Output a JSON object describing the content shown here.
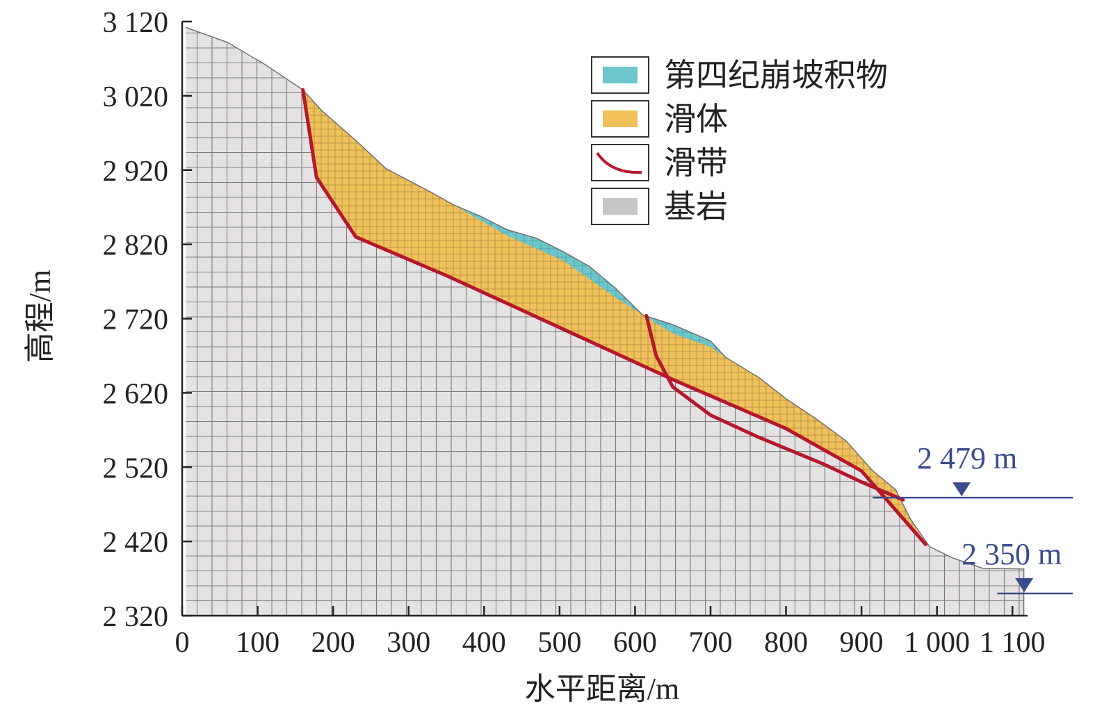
{
  "chart_data": {
    "type": "cross-section",
    "xlabel": "水平距离/m",
    "ylabel": "高程/m",
    "xlim": [
      0,
      1120
    ],
    "ylim": [
      2320,
      3120
    ],
    "x_tick_labels": [
      {
        "value": 0,
        "label": "0"
      },
      {
        "value": 100,
        "label": "100"
      },
      {
        "value": 200,
        "label": "200"
      },
      {
        "value": 300,
        "label": "300"
      },
      {
        "value": 400,
        "label": "400"
      },
      {
        "value": 500,
        "label": "500"
      },
      {
        "value": 600,
        "label": "600"
      },
      {
        "value": 700,
        "label": "700"
      },
      {
        "value": 800,
        "label": "800"
      },
      {
        "value": 900,
        "label": "900"
      },
      {
        "value": 1000,
        "label": "1 000"
      },
      {
        "value": 1100,
        "label": "1 100"
      }
    ],
    "y_tick_labels": [
      {
        "value": 3120,
        "label": "3 120"
      },
      {
        "value": 3020,
        "label": "3 020"
      },
      {
        "value": 2920,
        "label": "2 920"
      },
      {
        "value": 2820,
        "label": "2 820"
      },
      {
        "value": 2720,
        "label": "2 720"
      },
      {
        "value": 2620,
        "label": "2 620"
      },
      {
        "value": 2520,
        "label": "2 520"
      },
      {
        "value": 2420,
        "label": "2 420"
      },
      {
        "value": 2320,
        "label": "2 320"
      }
    ],
    "legend": [
      {
        "key": "deposit",
        "label": "第四纪崩坡积物",
        "color": "#6cc7cd"
      },
      {
        "key": "slide_body",
        "label": "滑体",
        "color": "#f0c15a"
      },
      {
        "key": "slip_zone",
        "label": "滑带",
        "color": "#b5172b"
      },
      {
        "key": "bedrock",
        "label": "基岩",
        "color": "#c9c6c6"
      }
    ],
    "water_levels": [
      {
        "label": "2 479 m",
        "elevation": 2479,
        "x_start": 915,
        "x_end": 1180
      },
      {
        "label": "2 350 m",
        "elevation": 2350,
        "x_start": 1080,
        "x_end": 1180
      }
    ],
    "ground_surface": [
      [
        5,
        3112
      ],
      [
        60,
        3092
      ],
      [
        110,
        3062
      ],
      [
        160,
        3028
      ],
      [
        185,
        3000
      ],
      [
        230,
        2960
      ],
      [
        270,
        2922
      ],
      [
        330,
        2890
      ],
      [
        360,
        2873
      ],
      [
        395,
        2858
      ],
      [
        430,
        2840
      ],
      [
        470,
        2828
      ],
      [
        505,
        2810
      ],
      [
        540,
        2790
      ],
      [
        575,
        2760
      ],
      [
        610,
        2725
      ],
      [
        650,
        2712
      ],
      [
        700,
        2690
      ],
      [
        720,
        2668
      ],
      [
        765,
        2640
      ],
      [
        800,
        2612
      ],
      [
        840,
        2585
      ],
      [
        880,
        2555
      ],
      [
        915,
        2515
      ],
      [
        945,
        2490
      ],
      [
        965,
        2450
      ],
      [
        990,
        2413
      ],
      [
        1020,
        2398
      ],
      [
        1060,
        2384
      ],
      [
        1115,
        2383
      ]
    ],
    "bedrock_top": [
      [
        160,
        3028
      ],
      [
        178,
        2910
      ],
      [
        230,
        2830
      ],
      [
        350,
        2778
      ],
      [
        500,
        2708
      ],
      [
        650,
        2638
      ],
      [
        800,
        2572
      ],
      [
        900,
        2515
      ],
      [
        985,
        2416
      ]
    ],
    "deposit_base": [
      [
        360,
        2873
      ],
      [
        430,
        2832
      ],
      [
        505,
        2798
      ],
      [
        575,
        2748
      ],
      [
        615,
        2722
      ],
      [
        650,
        2700
      ],
      [
        700,
        2682
      ],
      [
        720,
        2668
      ]
    ],
    "slip_zones": [
      [
        [
          160,
          3028
        ],
        [
          178,
          2910
        ],
        [
          230,
          2830
        ],
        [
          350,
          2778
        ],
        [
          500,
          2708
        ],
        [
          650,
          2638
        ],
        [
          800,
          2572
        ],
        [
          900,
          2515
        ],
        [
          985,
          2416
        ]
      ],
      [
        [
          615,
          2724
        ],
        [
          628,
          2670
        ],
        [
          650,
          2628
        ],
        [
          700,
          2590
        ],
        [
          760,
          2562
        ],
        [
          850,
          2524
        ],
        [
          900,
          2500
        ],
        [
          955,
          2476
        ]
      ]
    ]
  }
}
